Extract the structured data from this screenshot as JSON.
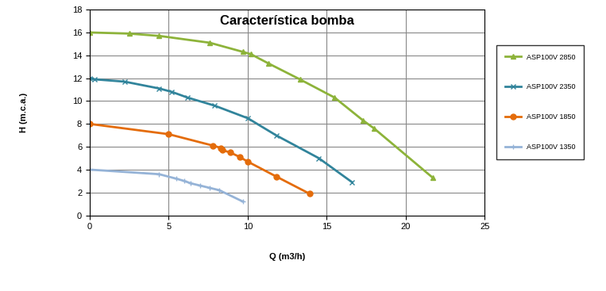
{
  "chart_data": {
    "type": "line",
    "title": "Característica bomba",
    "x_label": "Q (m3/h)",
    "y_label": "H (m.c.a.)",
    "xlim": [
      0,
      25
    ],
    "xticks": [
      0,
      5,
      10,
      15,
      20,
      25
    ],
    "ylim": [
      0,
      18
    ],
    "yticks": [
      0,
      2,
      4,
      6,
      8,
      10,
      12,
      14,
      16,
      18
    ],
    "grid": true,
    "legend": "right",
    "series": [
      {
        "name": "ASP100V 2850",
        "color": "#8db33a",
        "marker": "triangle",
        "x": [
          0,
          2.5,
          4.4,
          7.6,
          9.7,
          10.2,
          11.3,
          13.3,
          15.5,
          17.3,
          18,
          21.7
        ],
        "values": [
          16,
          15.9,
          15.7,
          15.1,
          14.3,
          14.1,
          13.3,
          11.9,
          10.3,
          8.3,
          7.6,
          3.3
        ]
      },
      {
        "name": "ASP100V 2350",
        "color": "#31849b",
        "marker": "x",
        "x": [
          0,
          0.3,
          2.2,
          4.4,
          5.2,
          6.2,
          7.9,
          10,
          11.8,
          14.5,
          16.6
        ],
        "values": [
          12,
          11.9,
          11.7,
          11.1,
          10.8,
          10.3,
          9.6,
          8.5,
          7,
          5,
          2.9
        ]
      },
      {
        "name": "ASP100V 1850",
        "color": "#e46c0a",
        "marker": "circle",
        "x": [
          0,
          5,
          7.8,
          8.3,
          8.4,
          8.9,
          9.5,
          10,
          11.8,
          13.9
        ],
        "values": [
          8,
          7.1,
          6.1,
          5.9,
          5.7,
          5.5,
          5.1,
          4.7,
          3.4,
          1.9
        ]
      },
      {
        "name": "ASP100V 1350",
        "color": "#95b3d7",
        "marker": "plus",
        "x": [
          0,
          4.4,
          5.5,
          6,
          6.4,
          7,
          7.6,
          8.2,
          9.7
        ],
        "values": [
          4,
          3.6,
          3.2,
          3,
          2.8,
          2.6,
          2.4,
          2.2,
          1.2
        ]
      }
    ]
  }
}
